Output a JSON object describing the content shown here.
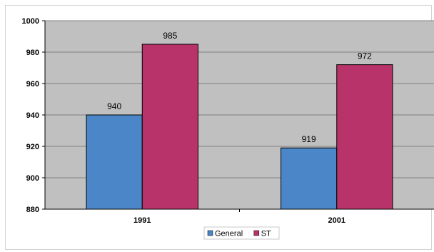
{
  "chart_data": {
    "type": "bar",
    "title": "",
    "xlabel": "",
    "ylabel": "",
    "categories": [
      "1991",
      "2001"
    ],
    "series": [
      {
        "name": "General",
        "values": [
          940,
          919
        ],
        "color": "#4a86c8"
      },
      {
        "name": "ST",
        "values": [
          985,
          972
        ],
        "color": "#b8336a"
      }
    ],
    "ylim": [
      880,
      1000
    ],
    "yticks": [
      880,
      900,
      920,
      940,
      960,
      980,
      1000
    ],
    "grid": true,
    "plot_background": "#c0c0c0",
    "legend_position": "bottom-center"
  }
}
